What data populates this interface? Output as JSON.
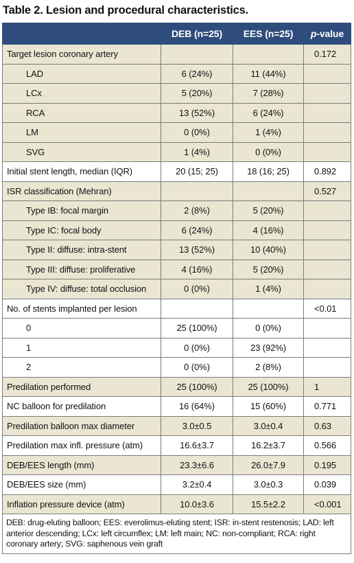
{
  "title": "Table 2. Lesion and procedural characteristics.",
  "header": {
    "col1": "",
    "col2": "DEB (n=25)",
    "col3": "EES (n=25)",
    "col4_italic": "p",
    "col4_rest": "-value"
  },
  "rows": [
    {
      "label": "Target lesion coronary artery",
      "deb": "",
      "ees": "",
      "p": "0.172",
      "sub": false,
      "shade": true
    },
    {
      "label": "LAD",
      "deb": "6 (24%)",
      "ees": "11 (44%)",
      "p": "",
      "sub": true,
      "shade": true
    },
    {
      "label": "LCx",
      "deb": "5 (20%)",
      "ees": "7 (28%)",
      "p": "",
      "sub": true,
      "shade": true
    },
    {
      "label": "RCA",
      "deb": "13 (52%)",
      "ees": "6 (24%)",
      "p": "",
      "sub": true,
      "shade": true
    },
    {
      "label": "LM",
      "deb": "0 (0%)",
      "ees": "1 (4%)",
      "p": "",
      "sub": true,
      "shade": true
    },
    {
      "label": "SVG",
      "deb": "1 (4%)",
      "ees": "0 (0%)",
      "p": "",
      "sub": true,
      "shade": true
    },
    {
      "label": "Initial stent length, median (IQR)",
      "deb": "20 (15; 25)",
      "ees": "18 (16; 25)",
      "p": "0.892",
      "sub": false,
      "shade": false
    },
    {
      "label": "ISR classification (Mehran)",
      "deb": "",
      "ees": "",
      "p": "0.527",
      "sub": false,
      "shade": true
    },
    {
      "label": "Type IB: focal margin",
      "deb": "2 (8%)",
      "ees": "5 (20%)",
      "p": "",
      "sub": true,
      "shade": true
    },
    {
      "label": "Type IC: focal body",
      "deb": "6 (24%)",
      "ees": "4 (16%)",
      "p": "",
      "sub": true,
      "shade": true
    },
    {
      "label": "Type II: diffuse: intra-stent",
      "deb": "13 (52%)",
      "ees": "10 (40%)",
      "p": "",
      "sub": true,
      "shade": true
    },
    {
      "label": "Type III: diffuse: proliferative",
      "deb": "4 (16%)",
      "ees": "5 (20%)",
      "p": "",
      "sub": true,
      "shade": true
    },
    {
      "label": "Type IV: diffuse: total occlusion",
      "deb": "0 (0%)",
      "ees": "1 (4%)",
      "p": "",
      "sub": true,
      "shade": true
    },
    {
      "label": "No. of stents implanted per lesion",
      "deb": "",
      "ees": "",
      "p": "<0.01",
      "sub": false,
      "shade": false
    },
    {
      "label": "0",
      "deb": "25 (100%)",
      "ees": "0 (0%)",
      "p": "",
      "sub": true,
      "shade": false
    },
    {
      "label": "1",
      "deb": "0 (0%)",
      "ees": "23 (92%)",
      "p": "",
      "sub": true,
      "shade": false
    },
    {
      "label": "2",
      "deb": "0 (0%)",
      "ees": "2 (8%)",
      "p": "",
      "sub": true,
      "shade": false
    },
    {
      "label": "Predilation performed",
      "deb": "25 (100%)",
      "ees": "25 (100%)",
      "p": "1",
      "sub": false,
      "shade": true
    },
    {
      "label": "NC balloon for predilation",
      "deb": "16 (64%)",
      "ees": "15 (60%)",
      "p": "0.771",
      "sub": false,
      "shade": false
    },
    {
      "label": "Predilation balloon max diameter",
      "deb": "3.0±0.5",
      "ees": "3.0±0.4",
      "p": "0.63",
      "sub": false,
      "shade": true
    },
    {
      "label": "Predilation max infl. pressure (atm)",
      "deb": "16.6±3.7",
      "ees": "16.2±3.7",
      "p": "0.566",
      "sub": false,
      "shade": false
    },
    {
      "label": "DEB/EES length (mm)",
      "deb": "23.3±6.6",
      "ees": "26.0±7.9",
      "p": "0.195",
      "sub": false,
      "shade": true
    },
    {
      "label": "DEB/EES size (mm)",
      "deb": "3.2±0.4",
      "ees": "3.0±0.3",
      "p": "0.039",
      "sub": false,
      "shade": false
    },
    {
      "label": "Inflation pressure device (atm)",
      "deb": "10.0±3.6",
      "ees": "15.5±2.2",
      "p": "<0.001",
      "sub": false,
      "shade": true
    }
  ],
  "footnote": "DEB: drug-eluting balloon; EES: everolimus-eluting stent; ISR: in-stent restenosis; LAD: left anterior descending; LCx: left circumflex; LM: left main; NC: non-compliant; RCA: right coronary artery; SVG: saphenous vein graft"
}
